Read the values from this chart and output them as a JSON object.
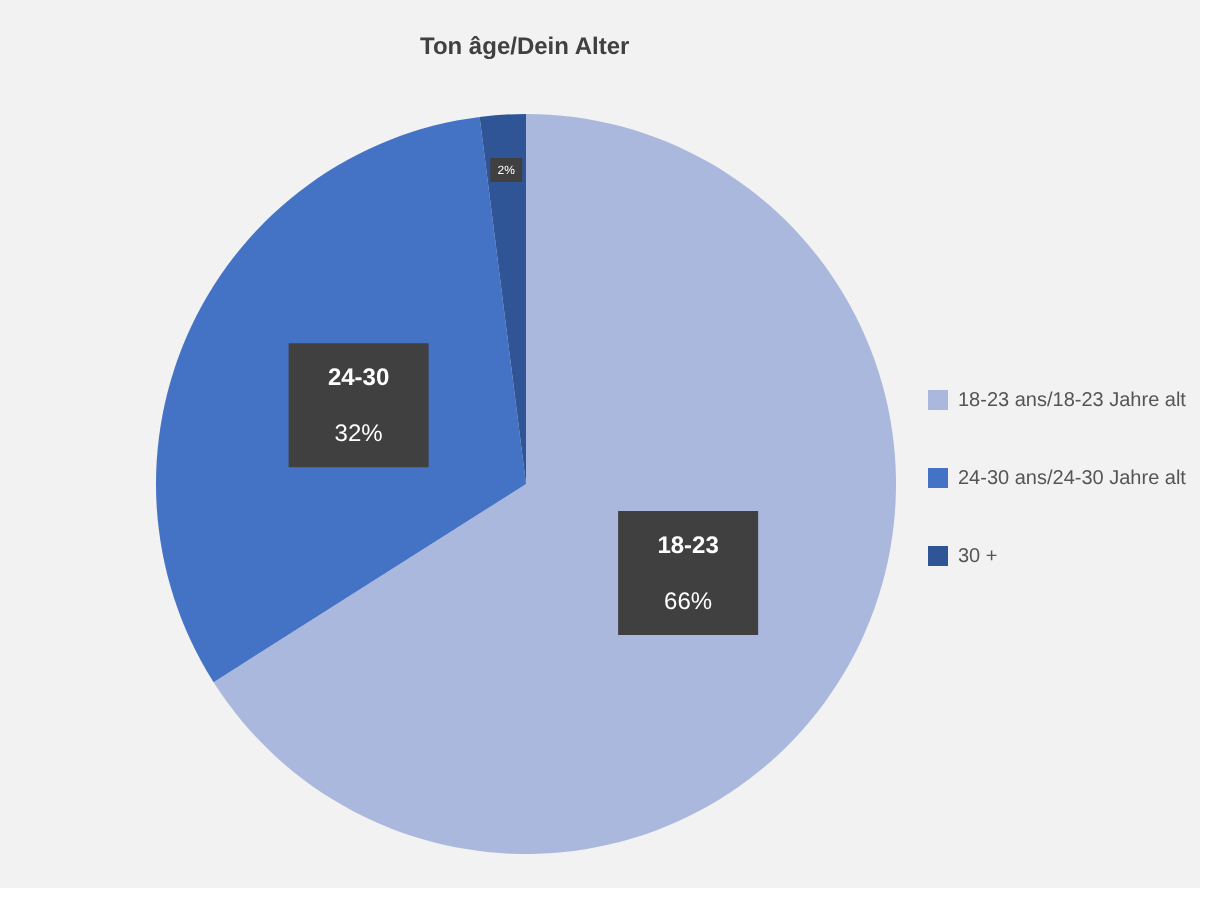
{
  "chart_data": {
    "type": "pie",
    "title": "Ton âge/Dein Alter",
    "categories": [
      "18-23 ans/18-23 Jahre alt",
      "24-30 ans/24-30 Jahre alt",
      "30 +"
    ],
    "values": [
      66,
      32,
      2
    ],
    "colors": [
      "#a9b8dc",
      "#4472c4",
      "#2f5597"
    ],
    "value_labels": [
      "66%",
      "32%",
      "2%"
    ],
    "annotations": [
      {
        "text": "18-23",
        "x": "18-23 ans/18-23 Jahre alt"
      },
      {
        "text": "24-30",
        "x": "24-30 ans/24-30 Jahre alt"
      }
    ],
    "legend": "right"
  }
}
